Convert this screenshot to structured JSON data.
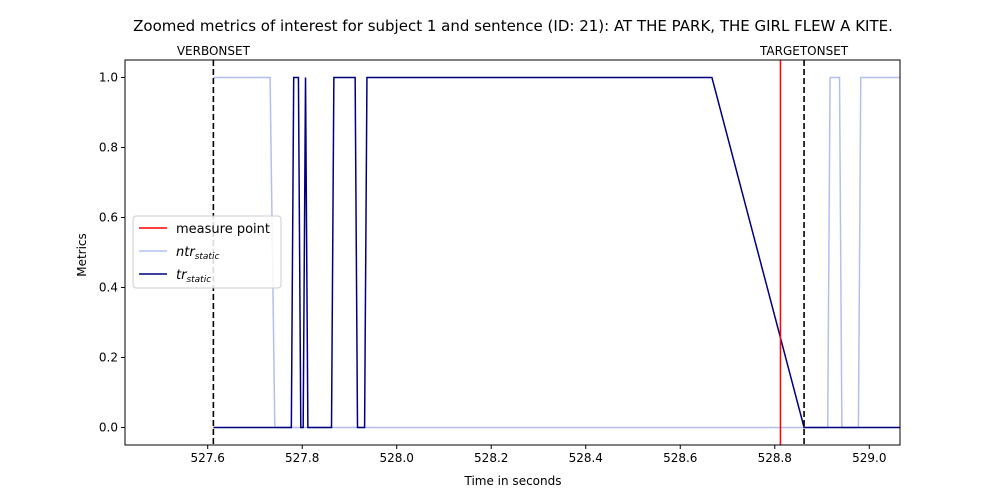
{
  "chart_data": {
    "type": "line",
    "title": "Zoomed metrics of interest for subject 1 and sentence (ID: 21): AT THE PARK, THE GIRL FLEW A KITE.",
    "xlabel": "Time in seconds",
    "ylabel": "Metrics",
    "xlim": [
      527.425,
      529.065
    ],
    "ylim": [
      -0.05,
      1.05
    ],
    "xticks": [
      527.6,
      527.8,
      528.0,
      528.2,
      528.4,
      528.6,
      528.8,
      529.0
    ],
    "yticks": [
      0.0,
      0.2,
      0.4,
      0.6,
      0.8,
      1.0
    ],
    "grid": false,
    "legend_position": "center-left",
    "vertical_lines": [
      {
        "label": "VERBONSET",
        "x": 527.612,
        "style": "dashed",
        "color": "#000000"
      },
      {
        "label": "TARGETONSET",
        "x": 528.862,
        "style": "dashed",
        "color": "#000000"
      }
    ],
    "measure_point": {
      "name": "measure point",
      "x": 528.812,
      "color": "#ff0000"
    },
    "series": [
      {
        "name": "ntr",
        "name_subscript": "static",
        "color": "#b4bff0",
        "x": [
          527.612,
          527.732,
          527.742,
          528.912,
          528.917,
          528.937,
          528.942,
          528.977,
          528.982,
          529.065
        ],
        "y": [
          1,
          1,
          0,
          0,
          1,
          1,
          0,
          0,
          1,
          1
        ]
      },
      {
        "name": "tr",
        "name_subscript": "static",
        "color": "#00007f",
        "x": [
          527.612,
          527.777,
          527.782,
          527.792,
          527.797,
          527.802,
          527.807,
          527.812,
          527.862,
          527.867,
          527.912,
          527.917,
          527.932,
          527.937,
          528.667,
          528.862,
          529.065
        ],
        "y": [
          0,
          0,
          1,
          1,
          0,
          0,
          1,
          0,
          0,
          1,
          1,
          0,
          0,
          1,
          1,
          0,
          0
        ]
      }
    ]
  }
}
